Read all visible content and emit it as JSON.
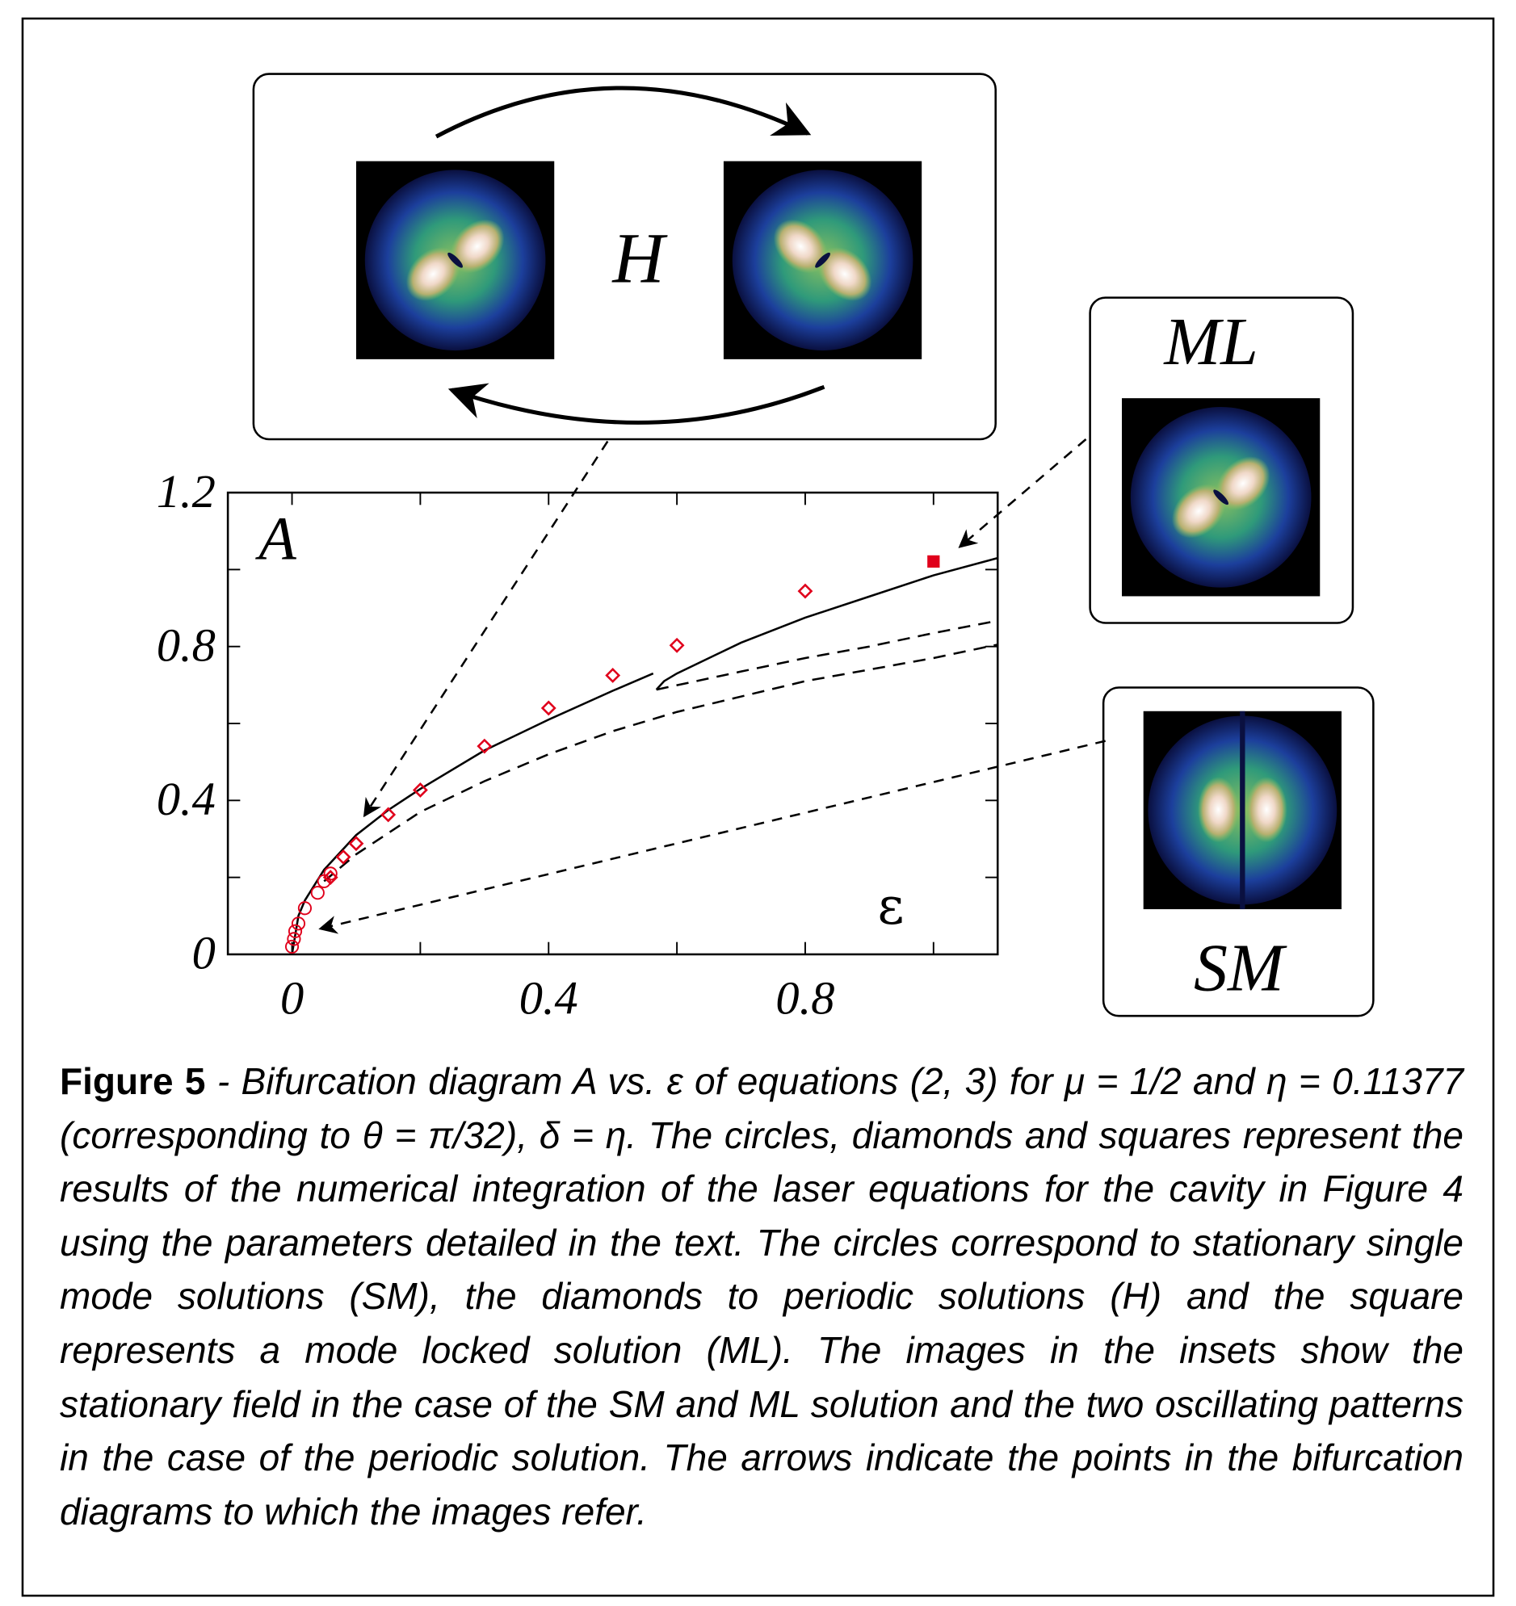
{
  "chart_data": {
    "type": "line",
    "y_label": "A",
    "x_label": "ε",
    "xlim": [
      -0.1,
      1.1
    ],
    "ylim": [
      0,
      1.2
    ],
    "xticks": [
      0,
      0.4,
      0.8
    ],
    "yticks": [
      0,
      0.4,
      0.8,
      1.2
    ],
    "xminor": [
      0.2,
      0.6,
      1.0
    ],
    "yminor": [
      0.2,
      0.6,
      1.0
    ],
    "series": [
      {
        "style": "solid",
        "color": "#000000",
        "x": [
          0,
          0.01,
          0.02,
          0.05,
          0.1,
          0.15,
          0.2,
          0.3,
          0.4,
          0.5,
          0.563
        ],
        "values": [
          0,
          0.1,
          0.14,
          0.22,
          0.31,
          0.375,
          0.43,
          0.53,
          0.61,
          0.685,
          0.73
        ]
      },
      {
        "style": "solid",
        "color": "#000000",
        "x": [
          0.568,
          0.58,
          0.6,
          0.7,
          0.8,
          0.9,
          1.0,
          1.1
        ],
        "values": [
          0.688,
          0.71,
          0.73,
          0.81,
          0.875,
          0.93,
          0.985,
          1.03
        ]
      },
      {
        "style": "dashed",
        "color": "#000000",
        "x": [
          0.568,
          0.7,
          0.8,
          0.9,
          1.0,
          1.1
        ],
        "values": [
          0.688,
          0.735,
          0.77,
          0.8,
          0.835,
          0.867
        ]
      },
      {
        "style": "dashed",
        "color": "#000000",
        "x": [
          0.05,
          0.1,
          0.2,
          0.3,
          0.4,
          0.5,
          0.6,
          0.8,
          1.0,
          1.1
        ],
        "values": [
          0.19,
          0.26,
          0.37,
          0.45,
          0.52,
          0.58,
          0.63,
          0.71,
          0.77,
          0.805
        ]
      },
      {
        "style": "circle",
        "color": "#e0001b",
        "x": [
          0.0,
          0.003,
          0.005,
          0.01,
          0.02,
          0.04,
          0.05,
          0.06
        ],
        "values": [
          0.02,
          0.04,
          0.06,
          0.08,
          0.12,
          0.16,
          0.19,
          0.21
        ]
      },
      {
        "style": "diamond",
        "color": "#e0001b",
        "x": [
          0.06,
          0.08,
          0.1,
          0.15,
          0.2,
          0.3,
          0.4,
          0.5,
          0.6,
          0.8
        ],
        "values": [
          0.2,
          0.253,
          0.288,
          0.363,
          0.427,
          0.541,
          0.64,
          0.725,
          0.803,
          0.944
        ]
      },
      {
        "style": "square",
        "color": "#e0001b",
        "x": [
          1.0
        ],
        "values": [
          1.021
        ]
      }
    ]
  },
  "insets": [
    {
      "label": "H"
    },
    {
      "label": "ML"
    },
    {
      "label": "SM"
    }
  ],
  "caption": {
    "label": "Figure 5",
    "text": "- Bifurcation diagram A vs. ε of equations (2, 3) for μ = 1/2 and η = 0.11377 (corresponding to θ = π/32), δ = η. The circles, diamonds and squares represent the results of the numerical integration of the laser equations for the cavity in Figure 4 using the parameters detailed in the text. The circles correspond to stationary single mode solutions (SM), the diamonds to periodic solutions (H) and the square represents a mode locked solution (ML). The images in the insets show the stationary field in the case of the SM and ML solution and the two oscillating patterns in the case of the periodic solution. The arrows indicate the points in the bifurcation diagrams to which the images refer."
  }
}
